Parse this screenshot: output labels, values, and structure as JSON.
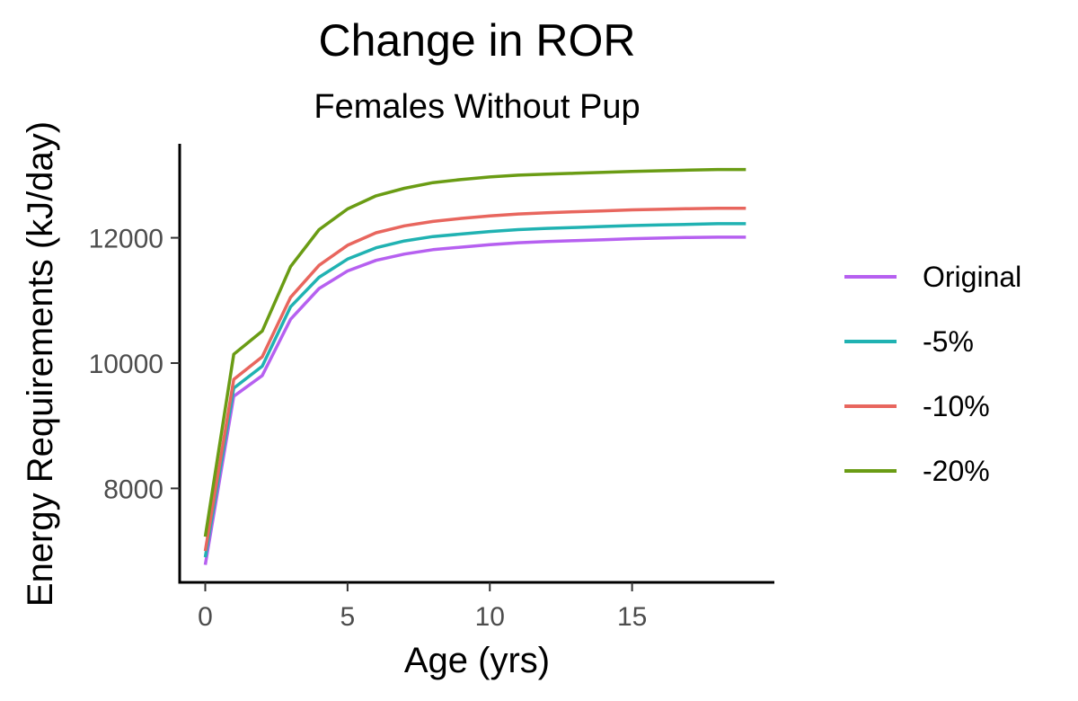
{
  "chart_data": {
    "type": "line",
    "title": "Change in ROR",
    "subtitle": "Females Without Pup",
    "xlabel": "Age (yrs)",
    "ylabel": "Energy Requirements (kJ/day)",
    "xlim": [
      -0.9,
      20
    ],
    "ylim": [
      6500,
      13500
    ],
    "xticks": [
      0,
      5,
      10,
      15
    ],
    "yticks": [
      8000,
      10000,
      12000
    ],
    "grid": false,
    "legend_position": "right",
    "x": [
      0,
      1,
      2,
      3,
      4,
      5,
      6,
      7,
      8,
      9,
      10,
      11,
      12,
      13,
      14,
      15,
      16,
      17,
      18,
      19
    ],
    "series": [
      {
        "name": "Original",
        "color": "#b660f0",
        "values": [
          6780,
          9470,
          9800,
          10700,
          11190,
          11470,
          11640,
          11740,
          11810,
          11850,
          11890,
          11920,
          11940,
          11955,
          11970,
          11985,
          11995,
          12005,
          12010,
          12010
        ]
      },
      {
        "name": "-5%",
        "color": "#20b2b2",
        "values": [
          6900,
          9600,
          9950,
          10900,
          11370,
          11660,
          11840,
          11950,
          12020,
          12060,
          12100,
          12130,
          12150,
          12165,
          12180,
          12195,
          12205,
          12215,
          12225,
          12225
        ]
      },
      {
        "name": "-10%",
        "color": "#e8665e",
        "values": [
          7000,
          9740,
          10100,
          11050,
          11560,
          11880,
          12080,
          12190,
          12260,
          12310,
          12350,
          12380,
          12400,
          12415,
          12430,
          12445,
          12455,
          12465,
          12470,
          12470
        ]
      },
      {
        "name": "-20%",
        "color": "#6a9c14",
        "values": [
          7230,
          10140,
          10510,
          11540,
          12130,
          12460,
          12670,
          12790,
          12880,
          12930,
          12970,
          13000,
          13015,
          13030,
          13045,
          13060,
          13070,
          13080,
          13090,
          13090
        ]
      }
    ]
  }
}
